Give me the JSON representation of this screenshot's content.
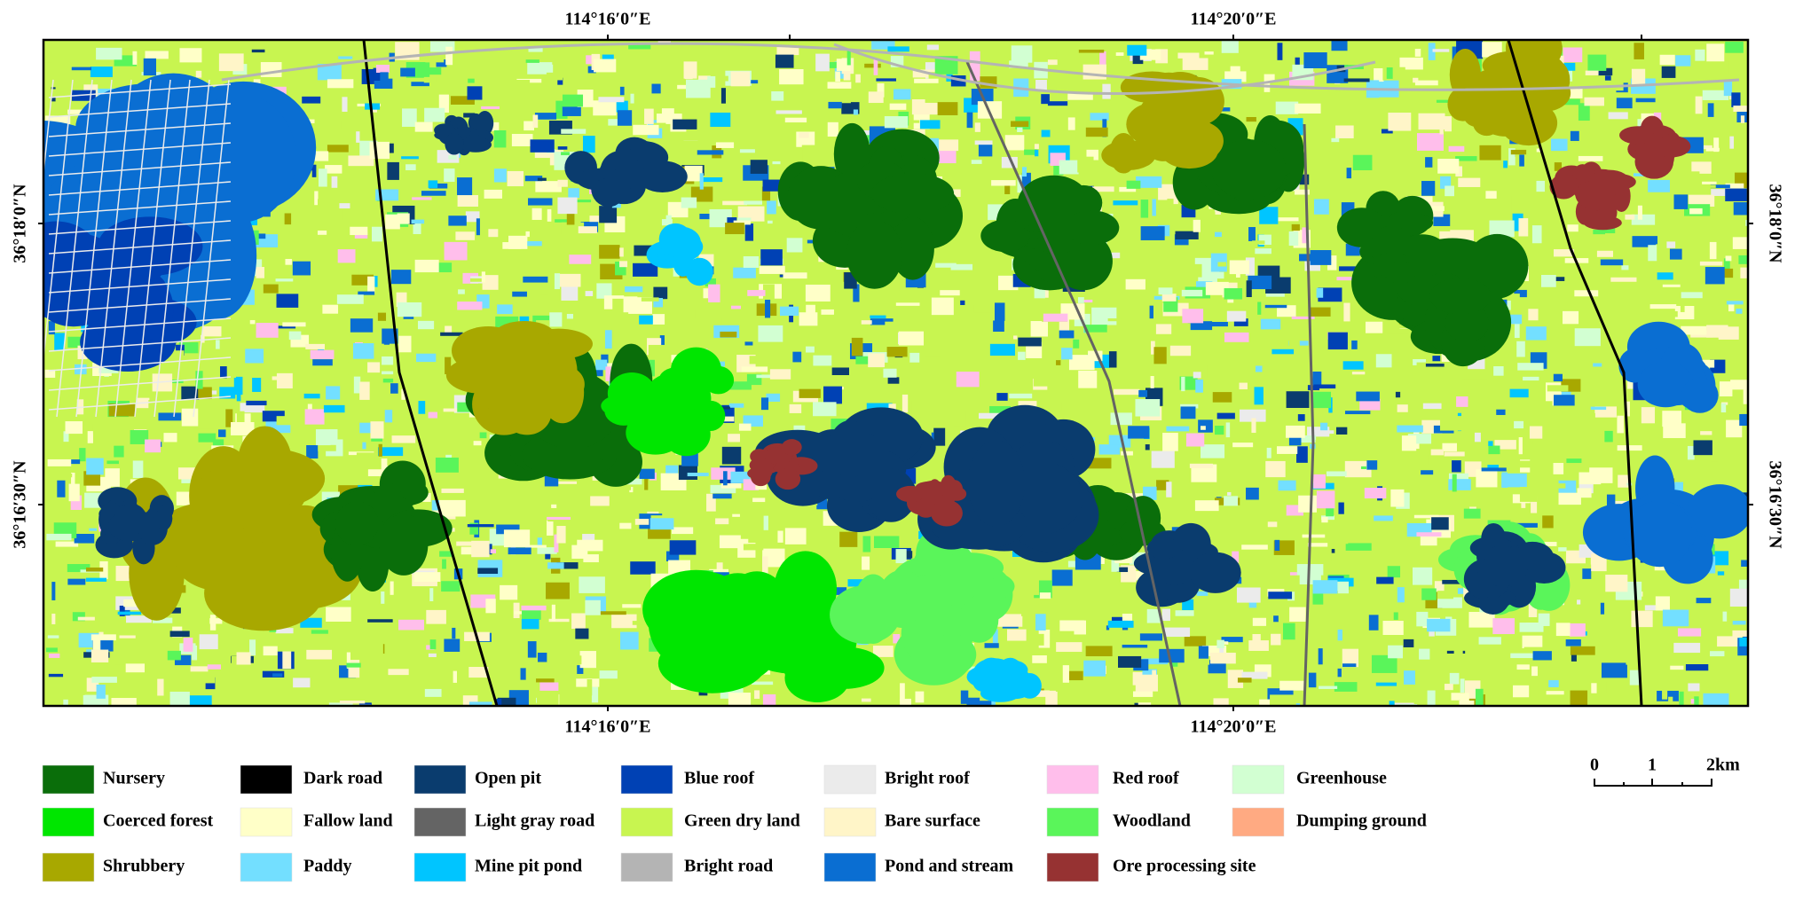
{
  "map": {
    "x_labels": [
      "114°16′0″E",
      "114°20′0″E"
    ],
    "y_labels": [
      "36°18′0″N",
      "36°16′30″N"
    ]
  },
  "legend": [
    {
      "label": "Nursery",
      "color": "#0a6e0a"
    },
    {
      "label": "Coerced forest",
      "color": "#00e600"
    },
    {
      "label": "Shrubbery",
      "color": "#a8a800"
    },
    {
      "label": "Dark road",
      "color": "#000000"
    },
    {
      "label": "Fallow land",
      "color": "#ffffc8"
    },
    {
      "label": "Paddy",
      "color": "#73dfff"
    },
    {
      "label": "Open pit",
      "color": "#0a3c6e"
    },
    {
      "label": "Light gray road",
      "color": "#646464"
    },
    {
      "label": "Mine pit pond",
      "color": "#00c5ff"
    },
    {
      "label": "Blue roof",
      "color": "#0041b4"
    },
    {
      "label": "Green dry land",
      "color": "#c8f550"
    },
    {
      "label": "Bright road",
      "color": "#b4b4b4"
    },
    {
      "label": "Bright roof",
      "color": "#ebebeb"
    },
    {
      "label": "Bare surface",
      "color": "#fff5c8"
    },
    {
      "label": "Pond and stream",
      "color": "#0a6ed2"
    },
    {
      "label": "Red roof",
      "color": "#ffbeeb"
    },
    {
      "label": "Woodland",
      "color": "#5af55a"
    },
    {
      "label": "Ore processing site",
      "color": "#963232"
    },
    {
      "label": "Greenhouse",
      "color": "#d2ffd2"
    },
    {
      "label": "Dumping ground",
      "color": "#ffaa82"
    }
  ],
  "scale_bar": {
    "labels": [
      "0",
      "1",
      "2km"
    ]
  }
}
